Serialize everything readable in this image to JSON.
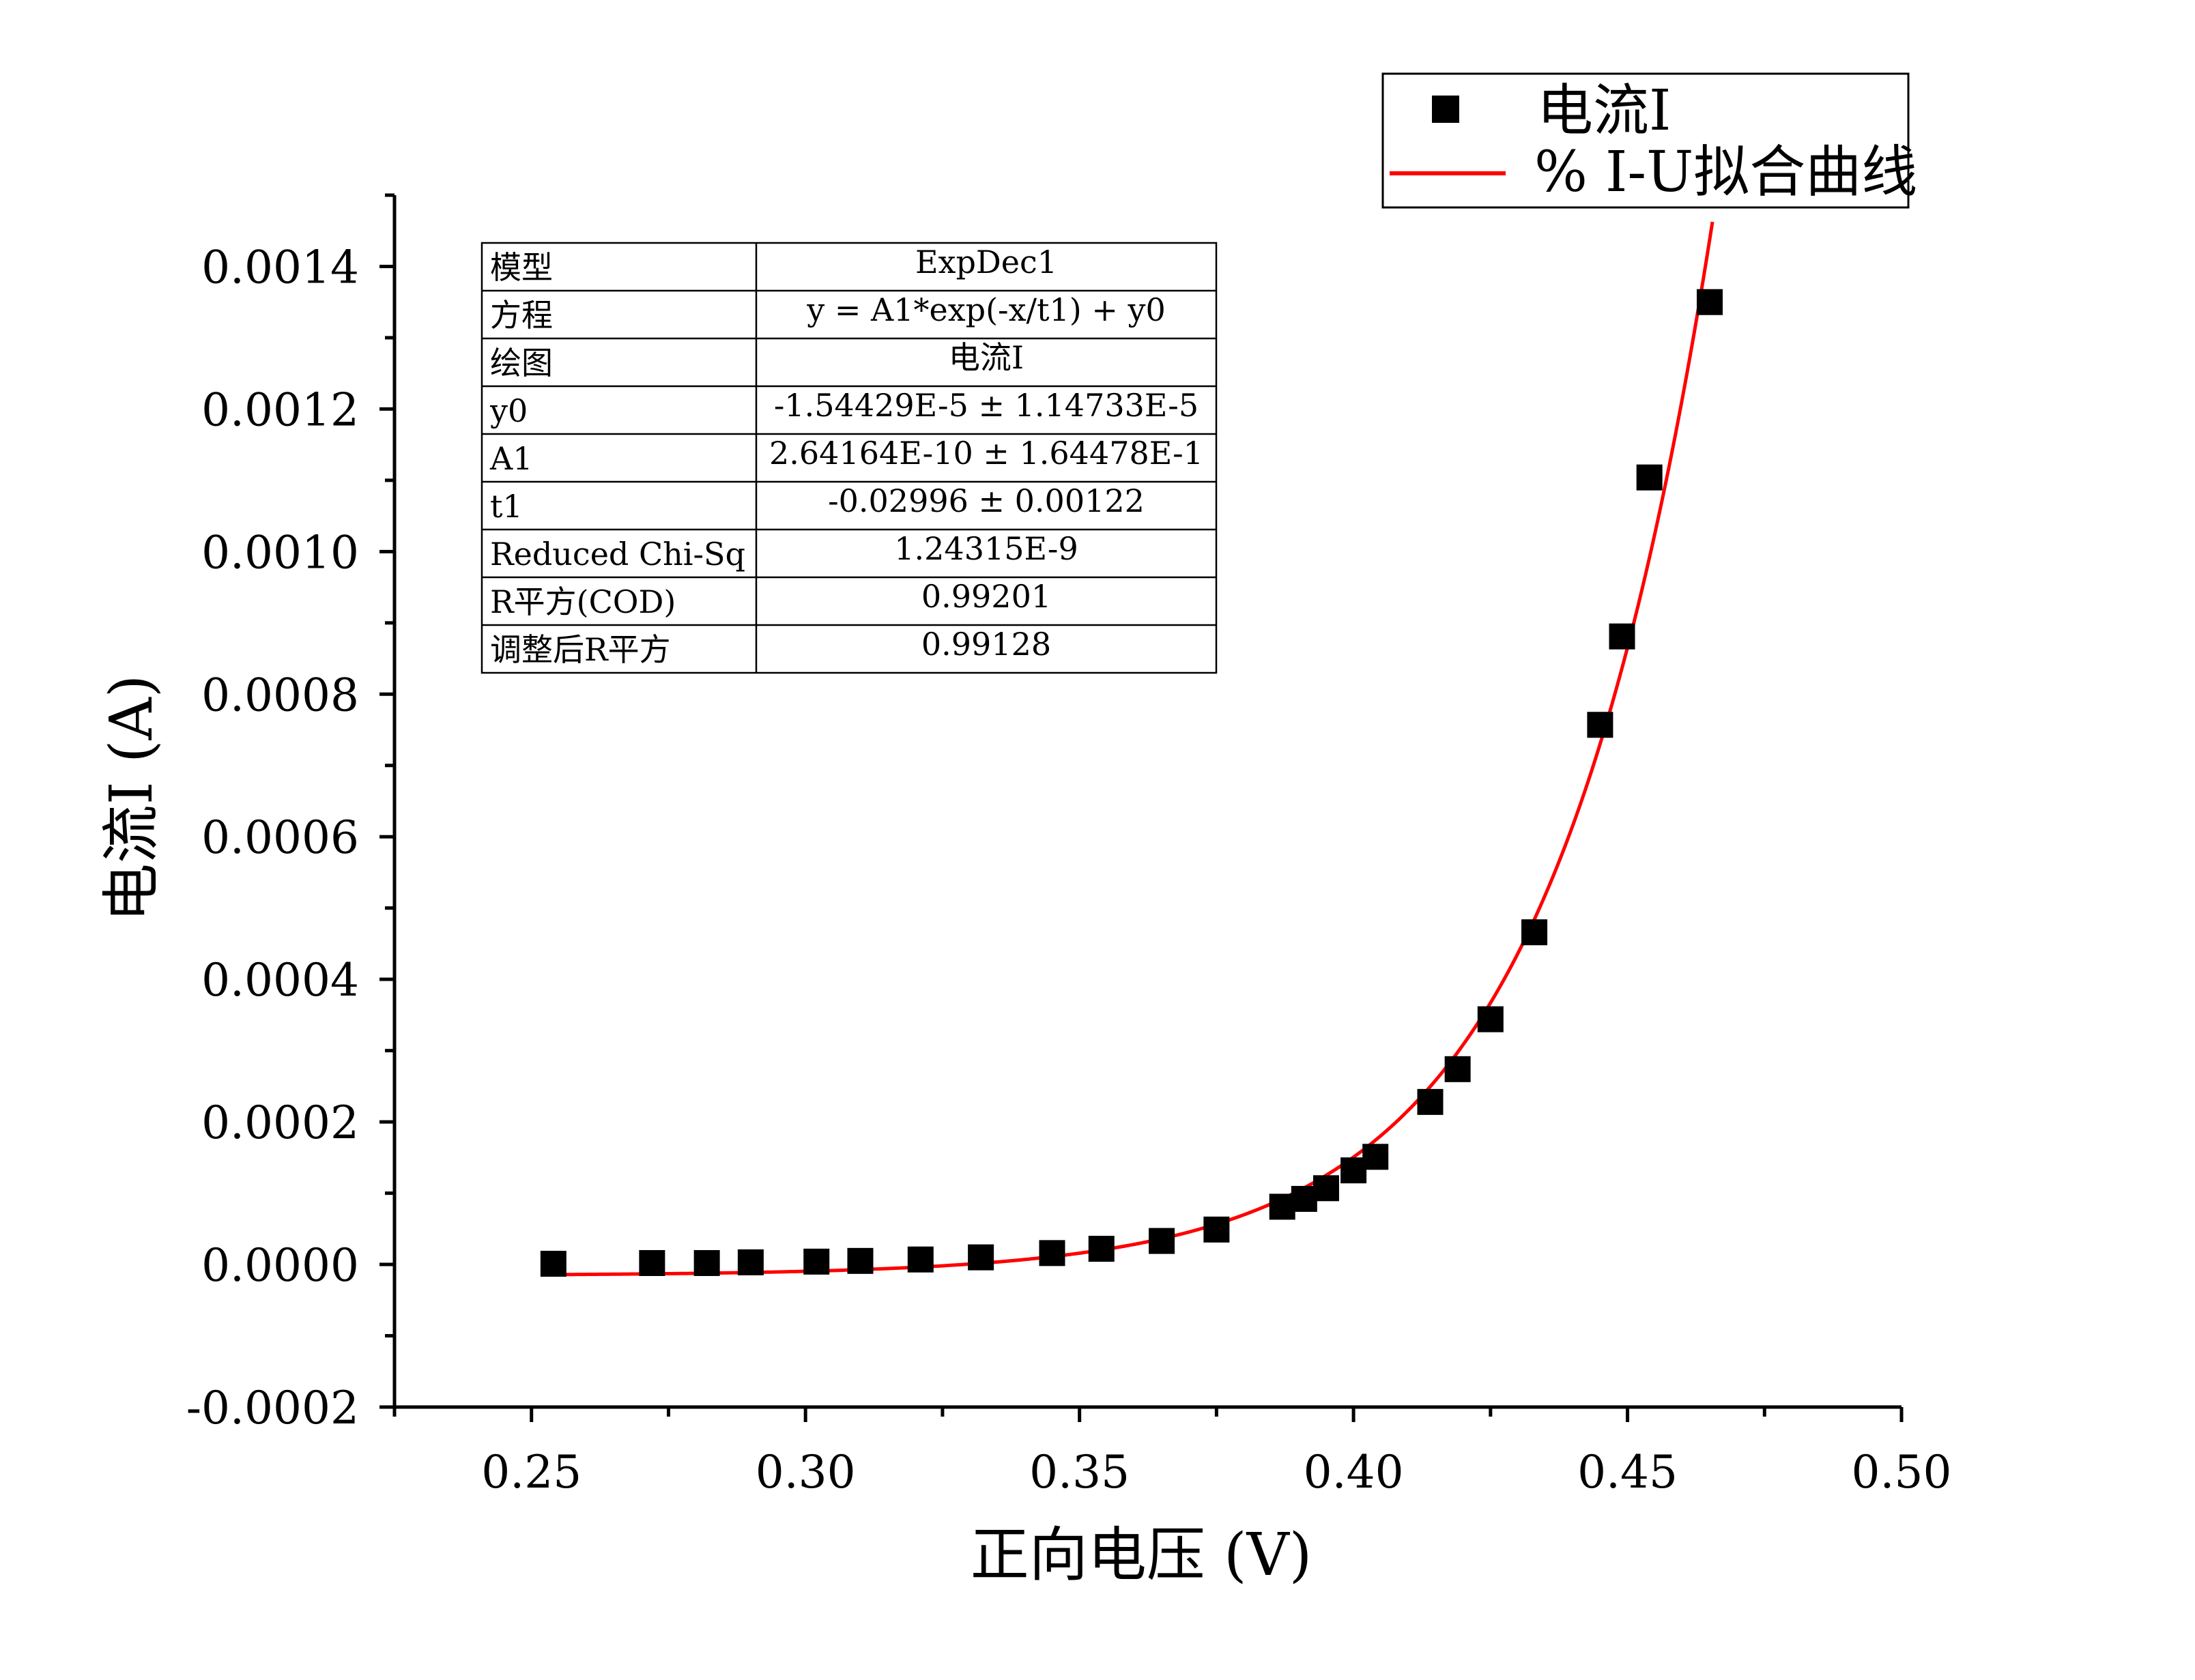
{
  "chart_data": {
    "type": "scatter",
    "xlabel": "正向电压 (V)",
    "ylabel": "电流I (A)",
    "xlim": [
      0.225,
      0.5
    ],
    "ylim": [
      -0.0002,
      0.0015
    ],
    "x_ticks": [
      0.25,
      0.3,
      0.35,
      0.4,
      0.45,
      0.5
    ],
    "x_tick_labels": [
      "0.25",
      "0.30",
      "0.35",
      "0.40",
      "0.45",
      "0.50"
    ],
    "y_ticks": [
      -0.0002,
      0.0,
      0.0002,
      0.0004,
      0.0006,
      0.0008,
      0.001,
      0.0012,
      0.0014
    ],
    "y_tick_labels": [
      "-0.0002",
      "0.0000",
      "0.0002",
      "0.0004",
      "0.0006",
      "0.0008",
      "0.0010",
      "0.0012",
      "0.0014"
    ],
    "grid": false,
    "legend_position": "top-right",
    "legend": [
      "电流I",
      "% I-U拟合曲线"
    ],
    "series": [
      {
        "name": "电流I",
        "kind": "points",
        "color": "#000000",
        "marker": "square",
        "x": [
          0.254,
          0.272,
          0.282,
          0.29,
          0.302,
          0.31,
          0.321,
          0.332,
          0.345,
          0.354,
          0.365,
          0.375,
          0.387,
          0.391,
          0.395,
          0.4,
          0.404,
          0.414,
          0.419,
          0.425,
          0.433,
          0.445,
          0.449,
          0.454,
          0.465
        ],
        "y": [
          1e-06,
          2e-06,
          2e-06,
          3e-06,
          4e-06,
          5e-06,
          7e-06,
          1e-05,
          1.6e-05,
          2.2e-05,
          3.3e-05,
          4.9e-05,
          8.1e-05,
          9.2e-05,
          0.000107,
          0.000132,
          0.000151,
          0.000228,
          0.000274,
          0.000344,
          0.000466,
          0.000757,
          0.000881,
          0.001104,
          0.00135
        ]
      },
      {
        "name": "% I-U拟合曲线",
        "kind": "fit",
        "color": "#ff0000",
        "model": "ExpDec1",
        "y0": -1.54429e-05,
        "A1": 2.64164e-10,
        "t1": -0.02996,
        "x_range": [
          0.254,
          0.4655
        ]
      }
    ],
    "fit_table": [
      {
        "label": "模型",
        "value": "ExpDec1"
      },
      {
        "label": "方程",
        "value": "y = A1*exp(-x/t1) + y0"
      },
      {
        "label": "绘图",
        "value": "电流I"
      },
      {
        "label": "y0",
        "value": "-1.54429E-5 ± 1.14733E-5"
      },
      {
        "label": "A1",
        "value": "2.64164E-10 ± 1.64478E-1"
      },
      {
        "label": "t1",
        "value": "-0.02996 ± 0.00122"
      },
      {
        "label": "Reduced Chi-Sq",
        "value": "1.24315E-9"
      },
      {
        "label": "R平方(COD)",
        "value": "0.99201"
      },
      {
        "label": "调整后R平方",
        "value": "0.99128"
      }
    ]
  }
}
